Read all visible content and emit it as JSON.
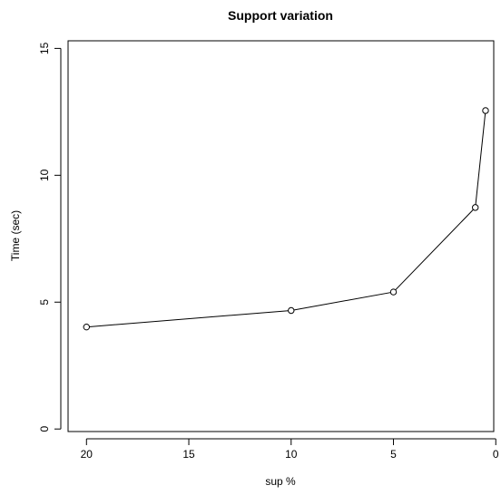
{
  "chart_data": {
    "type": "line",
    "title": "Support variation",
    "xlabel": "sup %",
    "ylabel": "Time (sec)",
    "x_reversed": true,
    "xlim": [
      20.9,
      0.1
    ],
    "ylim": [
      -0.1,
      15.3
    ],
    "x_axis_range": [
      20,
      0
    ],
    "y_axis_range": [
      0,
      15
    ],
    "x_ticks": [
      20,
      15,
      10,
      5,
      0
    ],
    "y_ticks": [
      0,
      5,
      10,
      15
    ],
    "x_tick_labels": [
      "20",
      "15",
      "10",
      "5",
      "0"
    ],
    "y_tick_labels": [
      "0",
      "5",
      "10",
      "15"
    ],
    "grid": false,
    "marker": "open-circle",
    "series": [
      {
        "x": [
          20,
          10,
          5,
          1,
          0.5
        ],
        "y": [
          4.02,
          4.67,
          5.4,
          8.73,
          12.55
        ]
      }
    ]
  }
}
